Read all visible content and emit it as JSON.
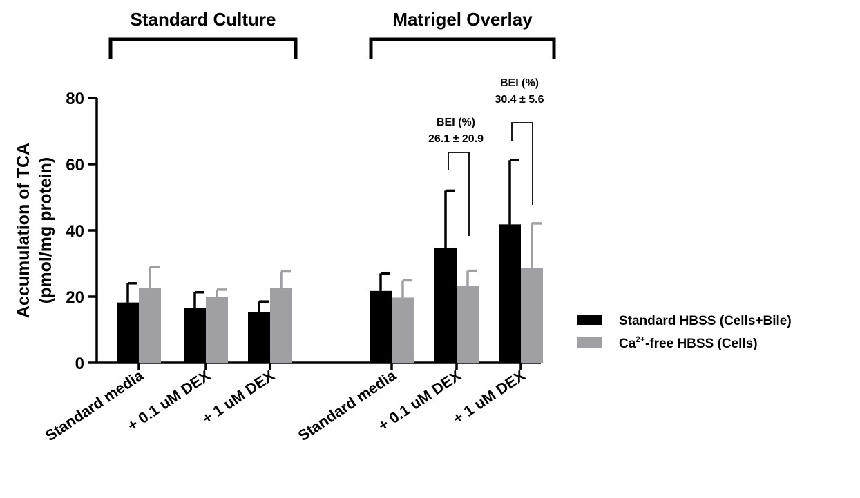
{
  "chart_data": {
    "type": "bar",
    "title": "",
    "xlabel": "",
    "ylabel": "Accumulation of TCA",
    "ylabel_unit": "(pmol/mg protein)",
    "ylim": [
      0,
      80
    ],
    "yticks": [
      "0",
      "20",
      "40",
      "60",
      "80"
    ],
    "grid": false,
    "legend_position": "right",
    "groups": [
      {
        "label": "Standard Culture",
        "categories": [
          0,
          1,
          2
        ]
      },
      {
        "label": "Matrigel Overlay",
        "categories": [
          3,
          4,
          5
        ]
      }
    ],
    "categories": [
      "Standard media",
      "+ 0.1 uM DEX",
      "+ 1 uM DEX",
      "Standard media",
      "+ 0.1 uM DEX",
      "+ 1 uM DEX"
    ],
    "series": [
      {
        "name": "Standard HBSS (Cells+Bile)",
        "color": "#000000",
        "values": [
          18.2,
          16.6,
          15.4,
          21.7,
          34.7,
          41.8
        ],
        "errors": [
          5.8,
          4.7,
          3.1,
          5.3,
          17.3,
          19.4
        ]
      },
      {
        "name": "-free HBSS (Cells)",
        "name_prefix": "Ca",
        "name_superscript": "2+",
        "color": "#a0a0a4",
        "values": [
          22.6,
          19.9,
          22.7,
          19.7,
          23.2,
          28.7
        ],
        "errors": [
          6.4,
          2.2,
          4.9,
          5.2,
          4.6,
          13.4
        ]
      }
    ],
    "annotations": [
      {
        "category": 4,
        "label": "BEI (%)",
        "value": "26.1 ± 20.9"
      },
      {
        "category": 5,
        "label": "BEI (%)",
        "value": "30.4 ± 5.6"
      }
    ]
  }
}
